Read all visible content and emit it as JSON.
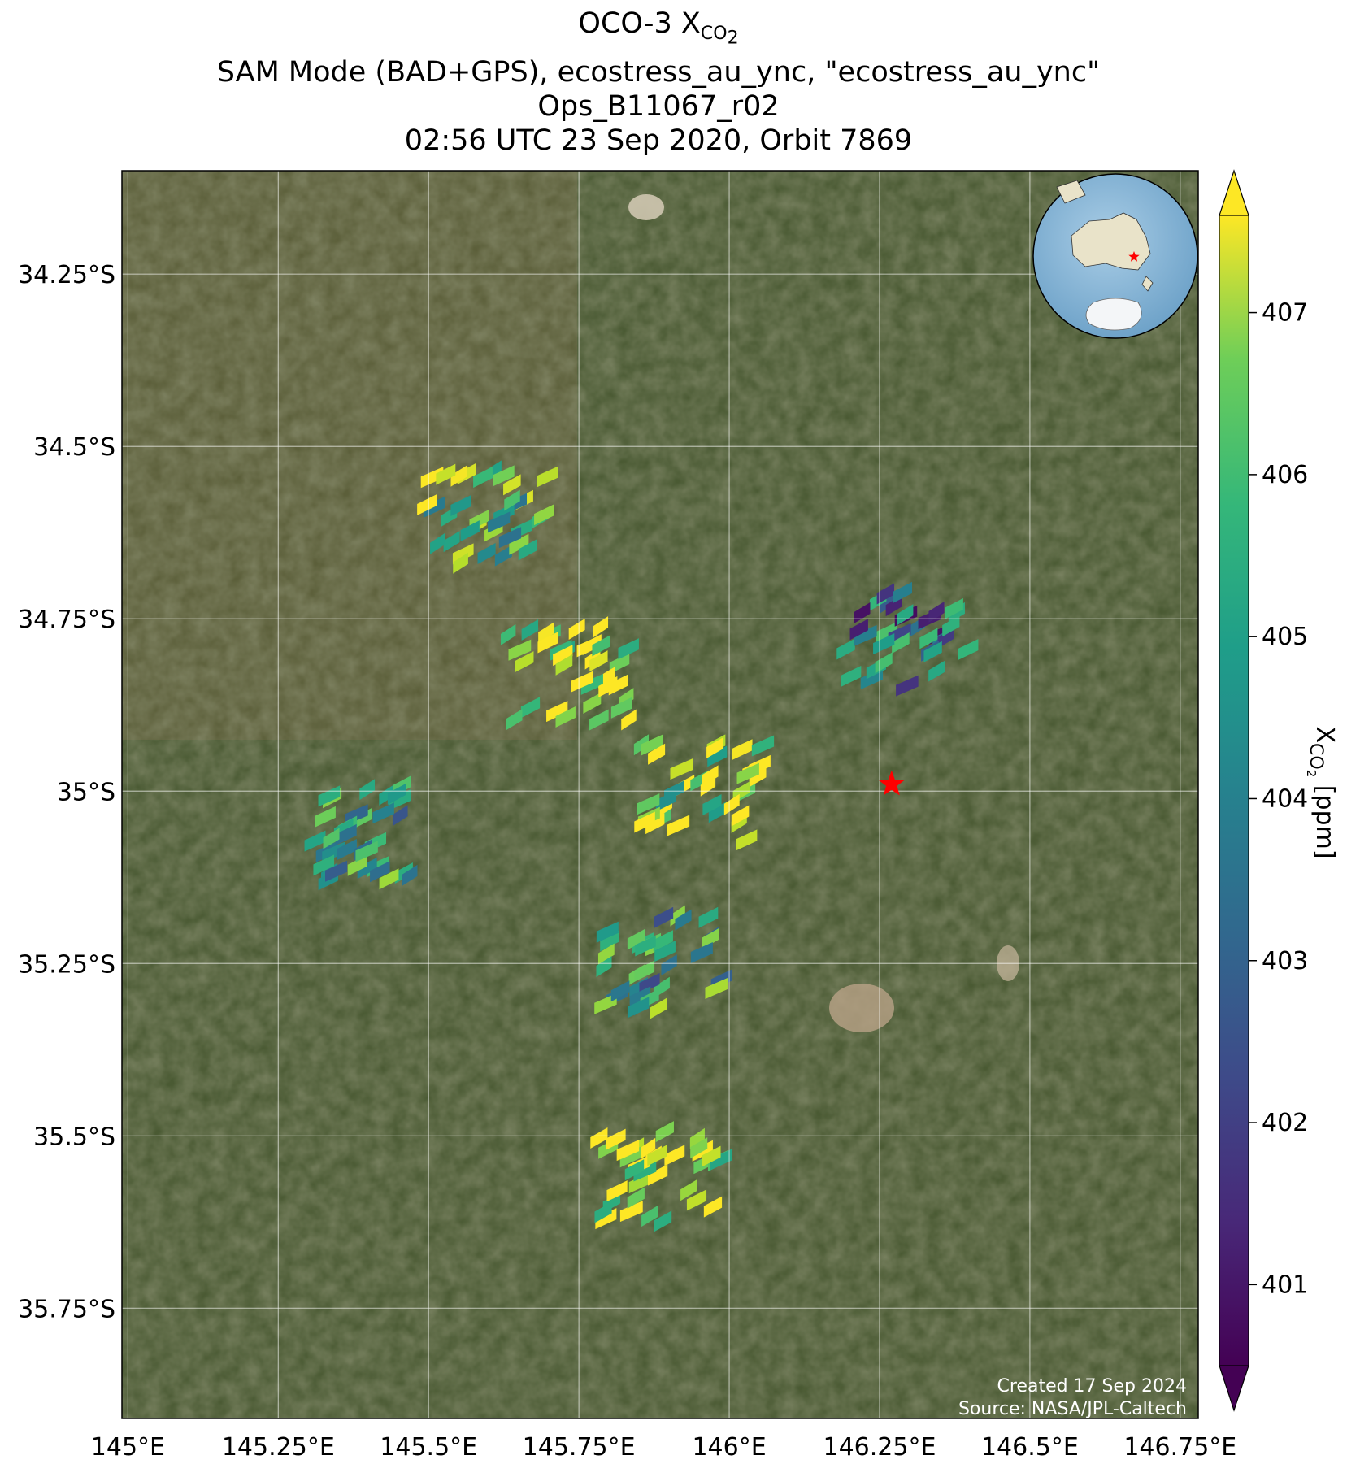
{
  "title": {
    "line1_prefix": "OCO-3 X",
    "line1_sub": "CO",
    "line1_subsub": "2",
    "line2": "SAM Mode (BAD+GPS), ecostress_au_ync, \"ecostress_au_ync\"",
    "line3": "Ops_B11067_r02",
    "line4": "02:56 UTC 23 Sep 2020, Orbit 7869"
  },
  "map": {
    "lon_ticks": [
      "145°E",
      "145.25°E",
      "145.5°E",
      "145.75°E",
      "146°E",
      "146.25°E",
      "146.5°E",
      "146.75°E"
    ],
    "lat_ticks": [
      "34.25°S",
      "34.5°S",
      "34.75°S",
      "35°S",
      "35.25°S",
      "35.5°S",
      "35.75°S"
    ],
    "background": "satellite imagery",
    "target_marker": {
      "lon": 146.27,
      "lat": -34.99,
      "color": "#ff0000",
      "shape": "star-icon"
    },
    "inset_globe": {
      "region": "Australia",
      "marker_color": "#ff0000"
    },
    "credits": [
      "Created 17 Sep 2024",
      "Source: NASA/JPL-Caltech"
    ]
  },
  "colorbar": {
    "label_prefix": "X",
    "label_sub": "CO",
    "label_subsub": "2",
    "label_suffix": " [ppm]",
    "ticks": [
      "401",
      "402",
      "403",
      "404",
      "405",
      "406",
      "407"
    ],
    "range": [
      400.5,
      407.6
    ],
    "colormap": "viridis",
    "extend": "both"
  },
  "chart_data": {
    "type": "scatter",
    "xlabel": "",
    "ylabel": "",
    "x_range": [
      144.99,
      146.78
    ],
    "y_range": [
      -35.91,
      -34.1
    ],
    "clusters": [
      {
        "lon": 145.58,
        "lat": -34.6,
        "xco2": 405.5
      },
      {
        "lon": 145.72,
        "lat": -34.83,
        "xco2": 406.8
      },
      {
        "lon": 145.94,
        "lat": -35.0,
        "xco2": 406.5
      },
      {
        "lon": 145.38,
        "lat": -35.06,
        "xco2": 404.8
      },
      {
        "lon": 145.87,
        "lat": -35.56,
        "xco2": 406.9
      },
      {
        "lon": 145.87,
        "lat": -35.25,
        "xco2": 404.5
      },
      {
        "lon": 146.28,
        "lat": -34.78,
        "xco2": 403.2
      }
    ]
  }
}
